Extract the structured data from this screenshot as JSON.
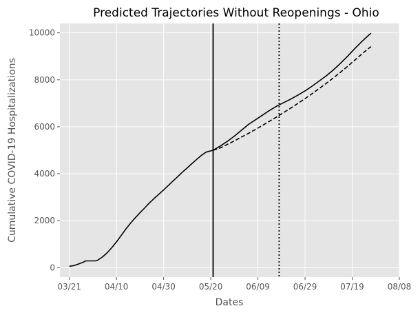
{
  "chart_data": {
    "type": "line",
    "title": "Predicted Trajectories Without Reopenings - Ohio",
    "xlabel": "Dates",
    "ylabel": "Cumulative COVID-19 Hospitalizations",
    "x_ticks": [
      "2020-03-21",
      "2020-04-10",
      "2020-04-30",
      "2020-05-20",
      "2020-06-09",
      "2020-06-29",
      "2020-07-19",
      "2020-08-08"
    ],
    "x_tick_labels": [
      "03/21",
      "04/10",
      "04/30",
      "05/20",
      "06/09",
      "06/29",
      "07/19",
      "08/08"
    ],
    "xlim": [
      "2020-03-17",
      "2020-08-08"
    ],
    "y_ticks": [
      0,
      2000,
      4000,
      6000,
      8000,
      10000
    ],
    "ylim": [
      -400,
      10400
    ],
    "grid": true,
    "legend": "none",
    "colors": {
      "plot_background": "#e5e5e5",
      "grid": "#ffffff",
      "line": "#000000"
    },
    "vertical_lines": [
      {
        "x": "2020-05-21",
        "style": "solid"
      },
      {
        "x": "2020-06-18",
        "style": "dotted"
      }
    ],
    "series": [
      {
        "style": "solid",
        "points": [
          [
            "2020-03-21",
            60
          ],
          [
            "2020-03-23",
            90
          ],
          [
            "2020-03-25",
            160
          ],
          [
            "2020-03-27",
            240
          ],
          [
            "2020-03-28",
            290
          ],
          [
            "2020-03-30",
            290
          ],
          [
            "2020-04-01",
            290
          ],
          [
            "2020-04-02",
            320
          ],
          [
            "2020-04-04",
            450
          ],
          [
            "2020-04-06",
            630
          ],
          [
            "2020-04-08",
            850
          ],
          [
            "2020-04-10",
            1100
          ],
          [
            "2020-04-12",
            1370
          ],
          [
            "2020-04-14",
            1650
          ],
          [
            "2020-04-16",
            1900
          ],
          [
            "2020-04-18",
            2130
          ],
          [
            "2020-04-20",
            2340
          ],
          [
            "2020-04-22",
            2550
          ],
          [
            "2020-04-24",
            2760
          ],
          [
            "2020-04-26",
            2950
          ],
          [
            "2020-04-28",
            3130
          ],
          [
            "2020-04-30",
            3310
          ],
          [
            "2020-05-02",
            3500
          ],
          [
            "2020-05-04",
            3690
          ],
          [
            "2020-05-06",
            3880
          ],
          [
            "2020-05-08",
            4070
          ],
          [
            "2020-05-10",
            4250
          ],
          [
            "2020-05-12",
            4430
          ],
          [
            "2020-05-14",
            4610
          ],
          [
            "2020-05-16",
            4780
          ],
          [
            "2020-05-18",
            4920
          ],
          [
            "2020-05-21",
            5000
          ],
          [
            "2020-05-24",
            5180
          ],
          [
            "2020-05-27",
            5380
          ],
          [
            "2020-05-30",
            5600
          ],
          [
            "2020-06-02",
            5850
          ],
          [
            "2020-06-05",
            6100
          ],
          [
            "2020-06-08",
            6300
          ],
          [
            "2020-06-11",
            6500
          ],
          [
            "2020-06-14",
            6700
          ],
          [
            "2020-06-17",
            6880
          ],
          [
            "2020-06-20",
            7030
          ],
          [
            "2020-06-23",
            7180
          ],
          [
            "2020-06-26",
            7350
          ],
          [
            "2020-06-29",
            7530
          ],
          [
            "2020-07-02",
            7730
          ],
          [
            "2020-07-05",
            7950
          ],
          [
            "2020-07-08",
            8170
          ],
          [
            "2020-07-11",
            8420
          ],
          [
            "2020-07-14",
            8700
          ],
          [
            "2020-07-17",
            9000
          ],
          [
            "2020-07-20",
            9320
          ],
          [
            "2020-07-23",
            9620
          ],
          [
            "2020-07-26",
            9900
          ],
          [
            "2020-07-27",
            9980
          ]
        ]
      },
      {
        "style": "dashed",
        "points": [
          [
            "2020-05-21",
            5000
          ],
          [
            "2020-05-24",
            5100
          ],
          [
            "2020-05-27",
            5250
          ],
          [
            "2020-05-30",
            5400
          ],
          [
            "2020-06-02",
            5560
          ],
          [
            "2020-06-05",
            5720
          ],
          [
            "2020-06-08",
            5890
          ],
          [
            "2020-06-11",
            6060
          ],
          [
            "2020-06-14",
            6240
          ],
          [
            "2020-06-17",
            6420
          ],
          [
            "2020-06-20",
            6610
          ],
          [
            "2020-06-23",
            6800
          ],
          [
            "2020-06-26",
            7000
          ],
          [
            "2020-06-29",
            7200
          ],
          [
            "2020-07-02",
            7410
          ],
          [
            "2020-07-05",
            7630
          ],
          [
            "2020-07-08",
            7850
          ],
          [
            "2020-07-11",
            8080
          ],
          [
            "2020-07-14",
            8320
          ],
          [
            "2020-07-17",
            8570
          ],
          [
            "2020-07-20",
            8830
          ],
          [
            "2020-07-23",
            9090
          ],
          [
            "2020-07-26",
            9340
          ],
          [
            "2020-07-27",
            9410
          ]
        ]
      }
    ]
  }
}
